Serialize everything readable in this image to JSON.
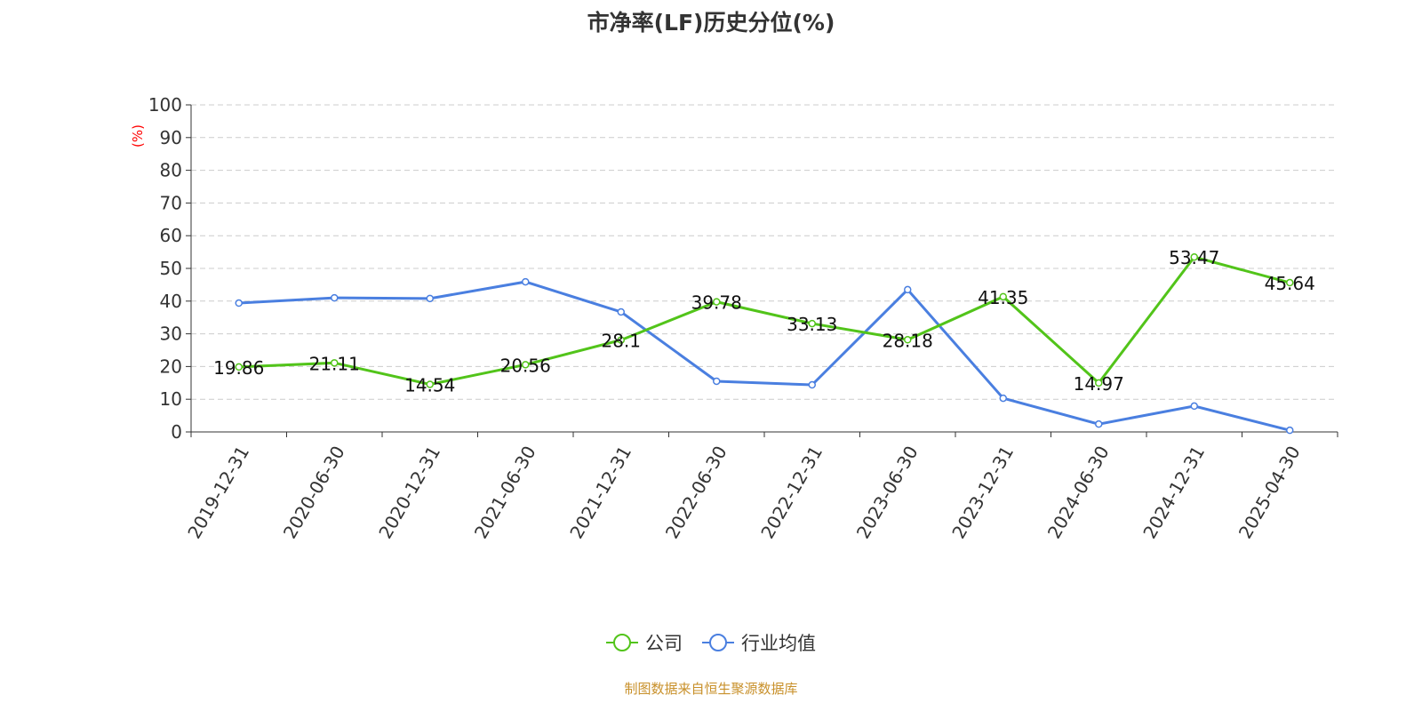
{
  "chart_data": {
    "type": "line",
    "title": "市净率(LF)历史分位(%)",
    "ylabel": "(%)",
    "xlabel": "",
    "ylim": [
      0,
      100
    ],
    "yticks": [
      0,
      10,
      20,
      30,
      40,
      50,
      60,
      70,
      80,
      90,
      100
    ],
    "grid": true,
    "legend_position": "bottom",
    "categories": [
      "2019-12-31",
      "2020-06-30",
      "2020-12-31",
      "2021-06-30",
      "2021-12-31",
      "2022-06-30",
      "2022-12-31",
      "2023-06-30",
      "2023-12-31",
      "2024-06-30",
      "2024-12-31",
      "2025-04-30"
    ],
    "series": [
      {
        "name": "公司",
        "color": "#52c41a",
        "labels": true,
        "values": [
          19.86,
          21.11,
          14.54,
          20.56,
          28.1,
          39.78,
          33.13,
          28.18,
          41.35,
          14.97,
          53.47,
          45.64
        ]
      },
      {
        "name": "行业均值",
        "color": "#4a7fe0",
        "labels": false,
        "values": [
          39.4,
          41.0,
          40.8,
          45.9,
          36.7,
          15.5,
          14.4,
          43.5,
          10.3,
          2.4,
          7.9,
          0.5
        ]
      }
    ]
  },
  "footer": "制图数据来自恒生聚源数据库"
}
